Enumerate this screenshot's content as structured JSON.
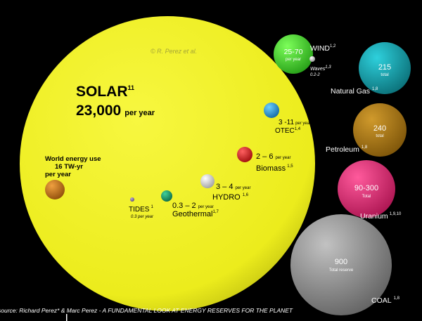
{
  "credit": "© R. Perez et al.",
  "source": "source: Richard Perez* & Marc Perez  - A FUNDAMENTAL LOOK AT ENERGY RESERVES FOR THE PLANET",
  "colors": {
    "background": "#000000",
    "solar": "#f2f224",
    "wind": "#3fcf2a",
    "natural_gas": "#14a3ad",
    "petroleum": "#b07a13",
    "uranium": "#e82b7a",
    "coal": "#8f8f8f",
    "world_use": "#c9741a",
    "otec": "#1f95d6",
    "biomass": "#e01414",
    "hydro": "#d9d9d9",
    "geothermal": "#1a9c6b",
    "tides": "#8a78a6",
    "waves": "#cfcfcf"
  },
  "solar": {
    "name": "SOLAR",
    "ref": "11",
    "value": "23,000",
    "unit": "per year"
  },
  "world_use": {
    "line1": "World energy use",
    "line2": "16 TW-yr",
    "line3": "per year"
  },
  "renewables": {
    "otec": {
      "value": "3 -11",
      "unit": "per year",
      "name": "OTEC",
      "ref": "1,4"
    },
    "biomass": {
      "value": "2 – 6",
      "unit": "per year",
      "name": "Biomass",
      "ref": "1,5"
    },
    "hydro": {
      "value": "3 – 4",
      "unit": "per year",
      "name": "HYDRO",
      "ref": "1,6"
    },
    "geothermal": {
      "value": "0.3 – 2",
      "unit": "per year",
      "name": "Geothermal",
      "ref": "1,7"
    },
    "tides": {
      "name": "TIDES",
      "ref": "1",
      "value": "0.3 per year"
    },
    "wind": {
      "value": "25-70",
      "unit": "per year",
      "name": "WIND",
      "ref": "1,2"
    },
    "waves": {
      "name": "Waves",
      "ref": "1,3",
      "value": "0.2-2"
    }
  },
  "reserves": {
    "natural_gas": {
      "value": "215",
      "unit": "total",
      "name": "Natural Gas",
      "ref": "1,8"
    },
    "petroleum": {
      "value": "240",
      "unit": "total",
      "name": "Petroleum",
      "ref": "1,8"
    },
    "uranium": {
      "value": "90-300",
      "unit": "Total",
      "name": "Uranium",
      "ref": "1,9,10"
    },
    "coal": {
      "value": "900",
      "unit": "Total reserve",
      "name": "COAL",
      "ref": "1,8"
    }
  }
}
